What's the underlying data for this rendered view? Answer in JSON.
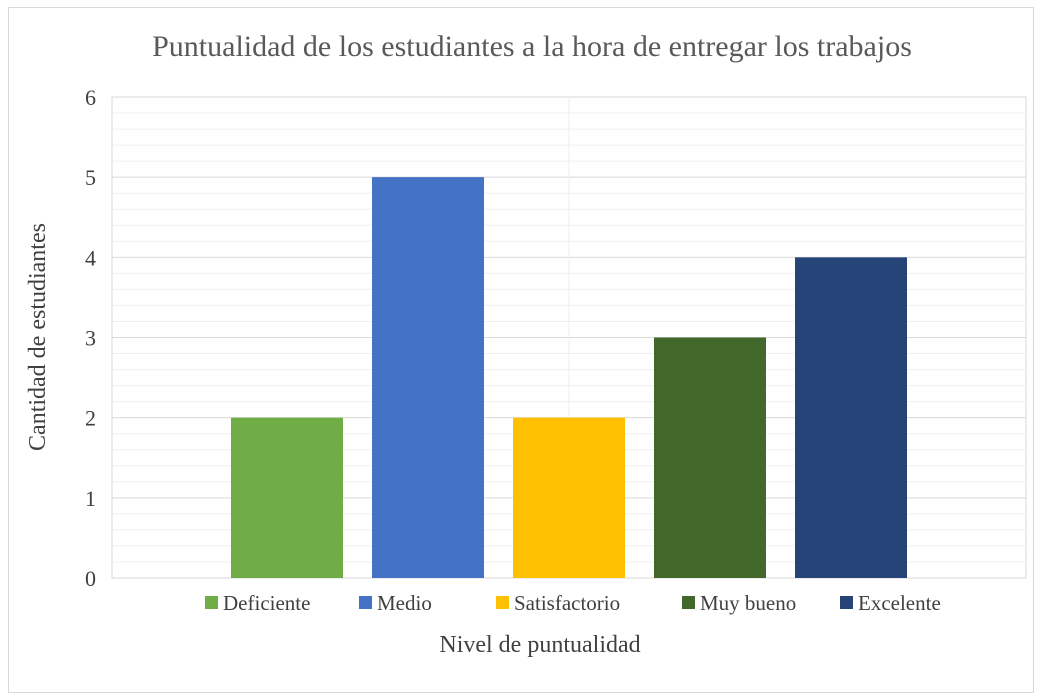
{
  "chart_data": {
    "type": "bar",
    "title": "Puntualidad de los estudiantes a la hora de entregar los trabajos",
    "xlabel": "Nivel de puntualidad",
    "ylabel": "Cantidad de estudiantes",
    "ylim": [
      0,
      6
    ],
    "yticks": [
      "0",
      "1",
      "2",
      "3",
      "4",
      "5",
      "6"
    ],
    "minor_gridlines": true,
    "legend_position": "bottom",
    "categories": [
      "Deficiente",
      "Medio",
      "Satisfactorio",
      "Muy bueno",
      "Excelente"
    ],
    "values": [
      2,
      5,
      2,
      3,
      4
    ],
    "colors": [
      "#70ad47",
      "#4472c4",
      "#ffc000",
      "#43682b",
      "#264478"
    ]
  }
}
